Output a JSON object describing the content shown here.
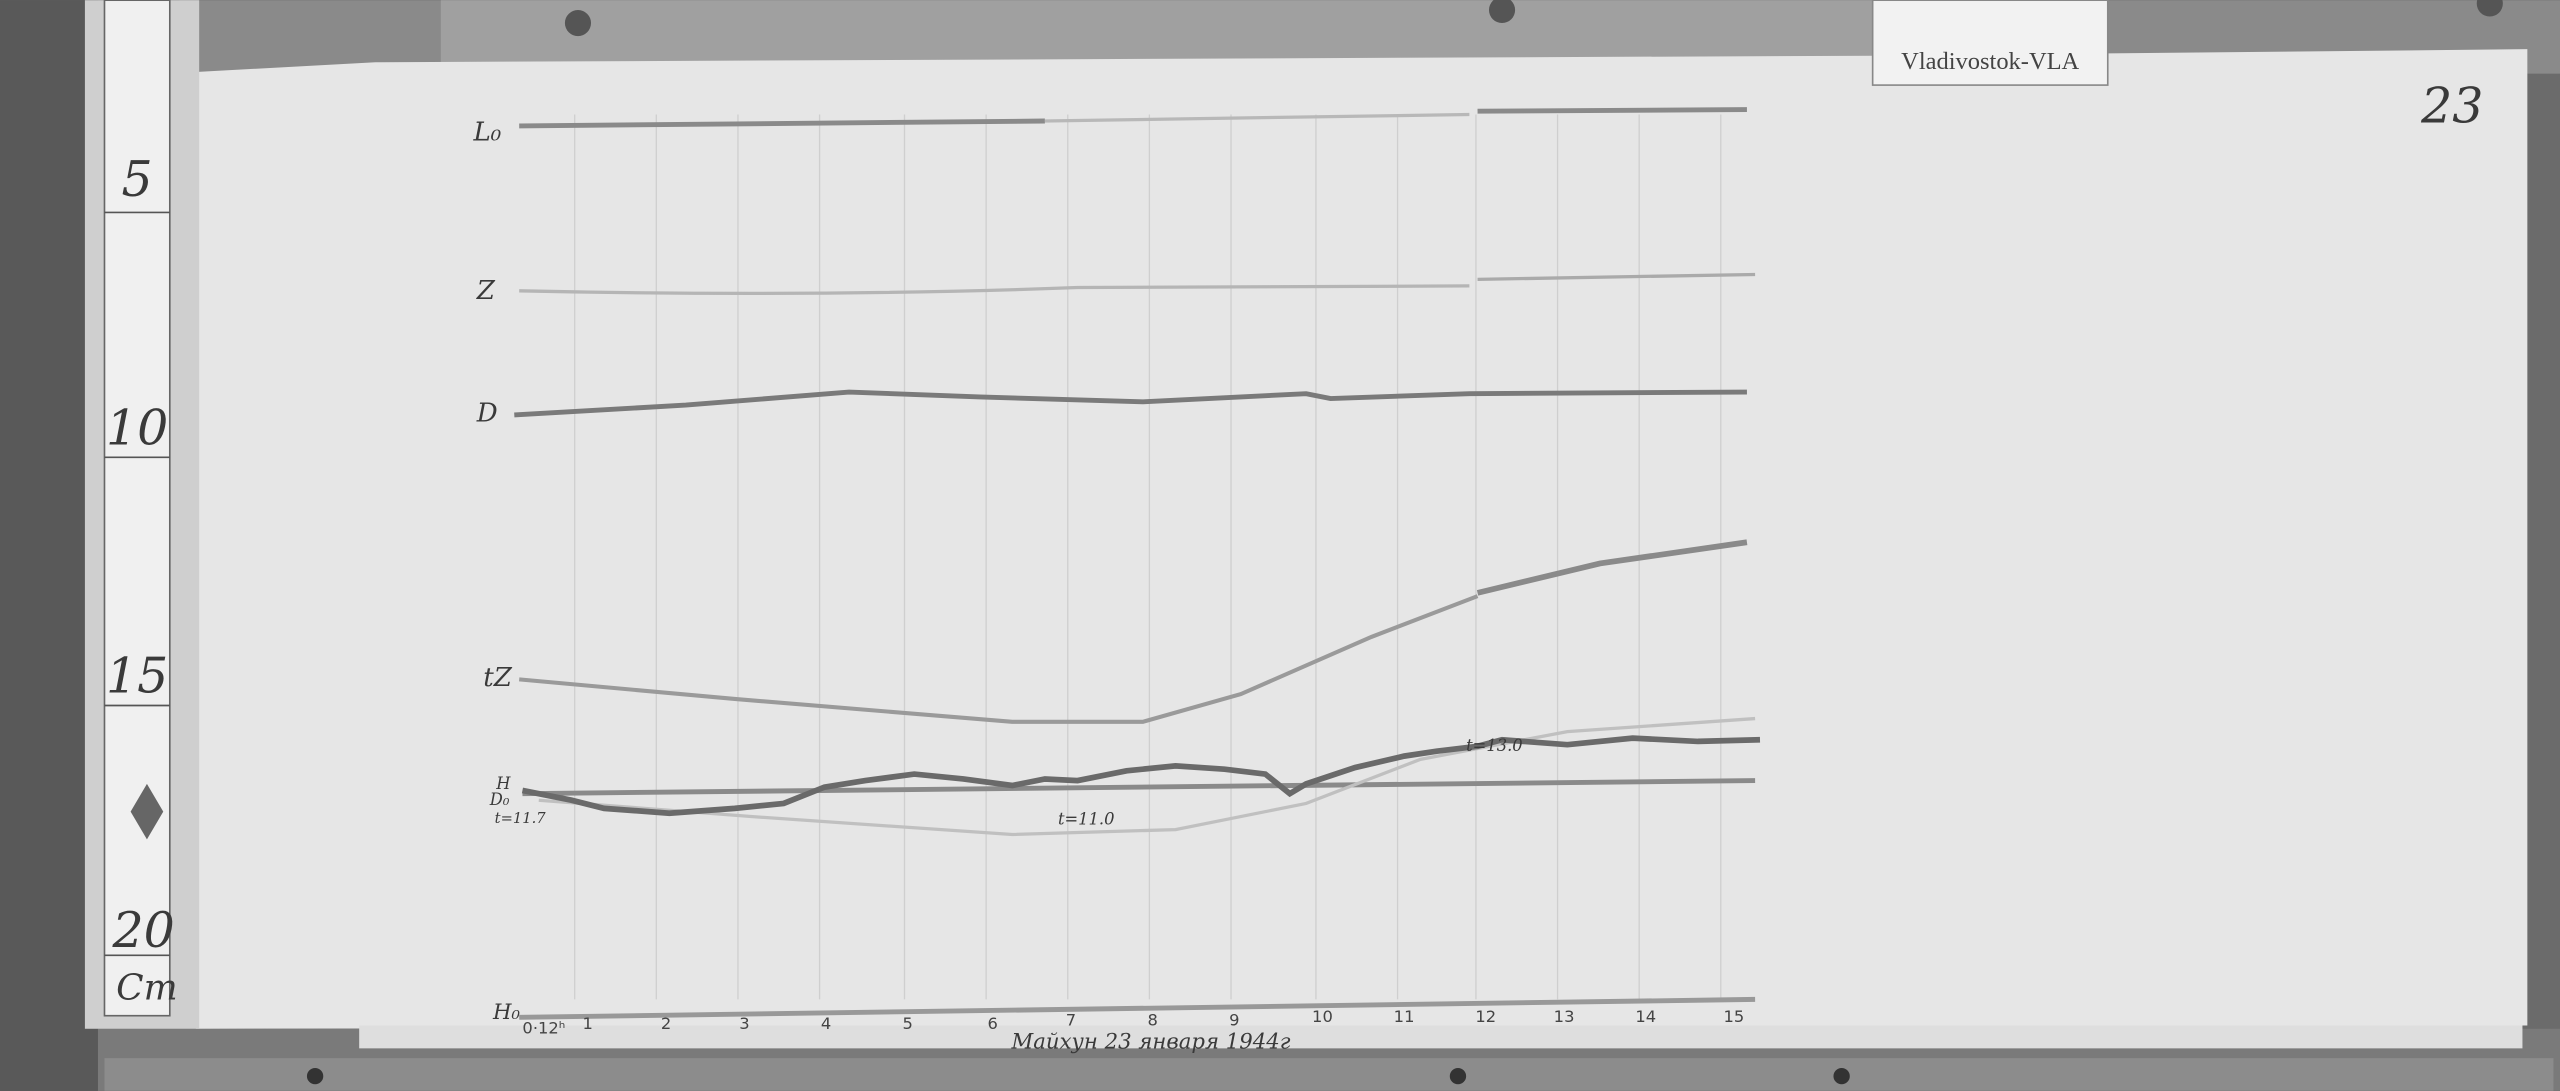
{
  "station_tag": "Vladivostok-VLA",
  "sheet_number": "23",
  "ruler": {
    "unit": "Cm",
    "marks": [
      "5",
      "10",
      "15",
      "20"
    ]
  },
  "trace_labels": {
    "l0": "L₀",
    "z": "Z",
    "d": "D",
    "tz": "tZ",
    "h": "H",
    "d0": "D₀",
    "t_start": "t=11.7",
    "t_mid": "t=11.0",
    "t_late": "t=13.0",
    "h0": "H₀"
  },
  "time_axis": {
    "start_label": "0·12ʰ",
    "hours": [
      "1",
      "2",
      "3",
      "4",
      "5",
      "6",
      "7",
      "8",
      "9",
      "10",
      "11",
      "12",
      "13",
      "14",
      "15"
    ]
  },
  "caption": "Майхун 23 января 1944г"
}
